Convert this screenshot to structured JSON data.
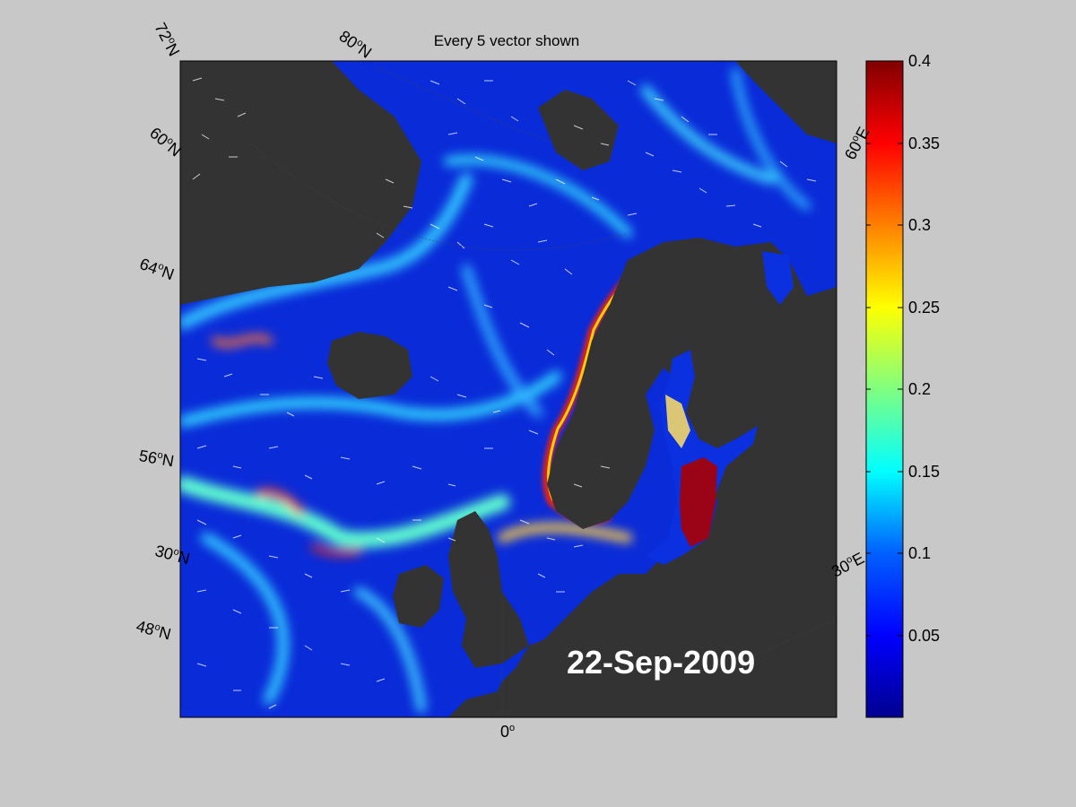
{
  "title": "Every 5 vector shown",
  "date": "22-Sep-2009",
  "colors": {
    "background": "#c8c8c8",
    "land": "#333333",
    "ocean_low": "#0a2bd8",
    "colormap": [
      "#00008f",
      "#0000ff",
      "#0080ff",
      "#00ffff",
      "#80ff80",
      "#ffff00",
      "#ff8000",
      "#ff0000",
      "#800000"
    ]
  },
  "colorbar": {
    "min": 0,
    "max": 0.4,
    "ticks": [
      "0.4",
      "0.35",
      "0.3",
      "0.25",
      "0.2",
      "0.15",
      "0.1",
      "0.05"
    ]
  },
  "graticule_labels": {
    "lat_72": "72oN",
    "lat_80": "80oN",
    "lat_60": "60oN",
    "lat_64": "64oN",
    "lat_56": "56oN",
    "lat_30": "30oN",
    "lat_48": "48oN",
    "lon_0": "0o",
    "lon_60e": "60oE",
    "lon_30e": "30oE"
  },
  "map": {
    "region": "North Atlantic, Nordic Seas and Baltic Sea",
    "variable": "surface current speed with vectors"
  }
}
